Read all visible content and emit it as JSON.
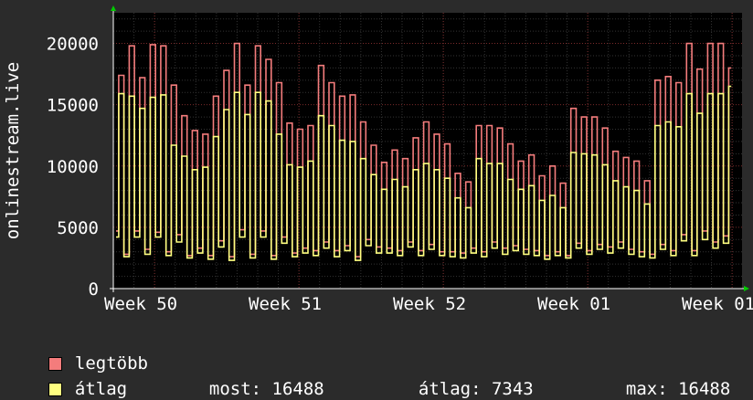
{
  "chart_data": {
    "type": "line",
    "title": "",
    "ylabel": "onlinestream.live",
    "xlabel": "",
    "ylim": [
      0,
      22500
    ],
    "yticks": [
      "0",
      "5000",
      "10000",
      "15000",
      "20000"
    ],
    "categories": [
      "Week 50",
      "Week 51",
      "Week 52",
      "Week 01",
      "Week 01"
    ],
    "grid": true,
    "series": [
      {
        "name": "legtöbb",
        "color": "#f47c7c",
        "daily": [
          [
            4700,
            17400,
            2800,
            19800
          ],
          [
            4700,
            17200,
            3200,
            19900
          ],
          [
            4600,
            19800,
            3000,
            16600
          ],
          [
            4400,
            14100,
            2700,
            12900
          ],
          [
            3300,
            12600,
            2700,
            15700
          ],
          [
            3900,
            17800,
            2600,
            20000
          ],
          [
            4800,
            16600,
            2800,
            19800
          ],
          [
            4700,
            18700,
            2700,
            16800
          ],
          [
            4200,
            13500,
            2900,
            13000
          ],
          [
            3300,
            13300,
            3100,
            18200
          ],
          [
            3800,
            16800,
            3100,
            15700
          ],
          [
            3500,
            15800,
            2600,
            13600
          ],
          [
            4000,
            11700,
            3400,
            10300
          ],
          [
            3300,
            11300,
            3100,
            10600
          ],
          [
            3800,
            12300,
            3100,
            13600
          ],
          [
            3600,
            12600,
            3000,
            11800
          ],
          [
            3000,
            9400,
            2900,
            8700
          ],
          [
            3300,
            13300,
            3000,
            13300
          ],
          [
            3800,
            13100,
            3300,
            11800
          ],
          [
            3500,
            10400,
            3200,
            10900
          ],
          [
            3100,
            9200,
            2700,
            10000
          ],
          [
            3000,
            8600,
            2700,
            14700
          ],
          [
            3700,
            14000,
            3100,
            14000
          ],
          [
            3600,
            13100,
            3400,
            11200
          ],
          [
            3800,
            10700,
            3200,
            10400
          ],
          [
            3000,
            8800,
            2800,
            17000
          ],
          [
            3600,
            17300,
            3100,
            16800
          ],
          [
            4400,
            20000,
            3100,
            17900
          ],
          [
            4700,
            20000,
            3800,
            20000
          ],
          [
            4300,
            18000
          ]
        ]
      },
      {
        "name": "átlag",
        "color": "#ffff80",
        "most": "16488",
        "atlag": "7343",
        "max": "16488",
        "daily": [
          [
            4200,
            15900,
            2600,
            15700
          ],
          [
            4200,
            14700,
            2800,
            15600
          ],
          [
            4200,
            15800,
            2700,
            11700
          ],
          [
            3800,
            10800,
            2500,
            9700
          ],
          [
            2900,
            9900,
            2400,
            12400
          ],
          [
            3400,
            14600,
            2300,
            16000
          ],
          [
            4200,
            14200,
            2500,
            16000
          ],
          [
            4200,
            15300,
            2400,
            12600
          ],
          [
            3700,
            10100,
            2600,
            9900
          ],
          [
            2900,
            10400,
            2700,
            14100
          ],
          [
            3300,
            13300,
            2600,
            12100
          ],
          [
            3100,
            12000,
            2300,
            10600
          ],
          [
            3500,
            9300,
            2900,
            8100
          ],
          [
            2900,
            8900,
            2700,
            8300
          ],
          [
            3400,
            9700,
            2700,
            10200
          ],
          [
            3200,
            9700,
            2700,
            9000
          ],
          [
            2600,
            7400,
            2500,
            6600
          ],
          [
            2900,
            10600,
            2600,
            10200
          ],
          [
            3300,
            10200,
            2800,
            8900
          ],
          [
            3100,
            8100,
            2800,
            8400
          ],
          [
            2700,
            7200,
            2400,
            7600
          ],
          [
            2700,
            6600,
            2500,
            11100
          ],
          [
            3300,
            11000,
            2800,
            10900
          ],
          [
            3200,
            10100,
            2900,
            8800
          ],
          [
            3300,
            8300,
            2800,
            8000
          ],
          [
            2600,
            6900,
            2500,
            13300
          ],
          [
            3200,
            13600,
            2700,
            13200
          ],
          [
            3900,
            15900,
            2700,
            14300
          ],
          [
            4000,
            15900,
            3300,
            15900
          ],
          [
            3700,
            16500
          ]
        ]
      }
    ]
  },
  "legend": {
    "stat_most_label": "most:",
    "stat_atlag_label": "átlag:",
    "stat_max_label": "max:"
  }
}
